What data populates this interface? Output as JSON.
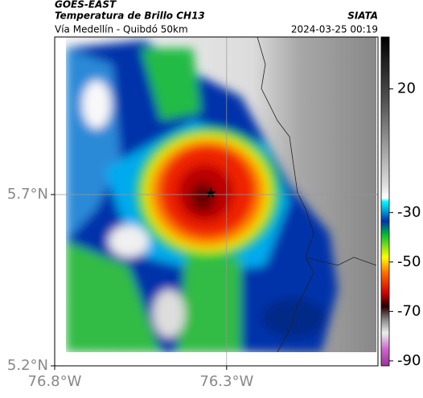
{
  "header": {
    "source": "GOES-EAST",
    "title": "Temperatura de Brillo CH13",
    "brand": "SIATA",
    "subtitle": "Vía Medellín - Quibdó 50km",
    "timestamp": "2024-03-25 00:19"
  },
  "map": {
    "xlim": [
      -76.8,
      -75.86
    ],
    "ylim": [
      5.2,
      6.16
    ],
    "xticks": [
      {
        "value": -76.8,
        "label": "76.8°W"
      },
      {
        "value": -76.3,
        "label": "76.3°W"
      }
    ],
    "yticks": [
      {
        "value": 5.7,
        "label": "5.7°N"
      },
      {
        "value": 5.2,
        "label": "5.2°N"
      }
    ],
    "grid": true
  },
  "colorbar": {
    "clim": [
      -92,
      41
    ],
    "ticks": [
      20,
      -30,
      -50,
      -70,
      -90
    ]
  }
}
